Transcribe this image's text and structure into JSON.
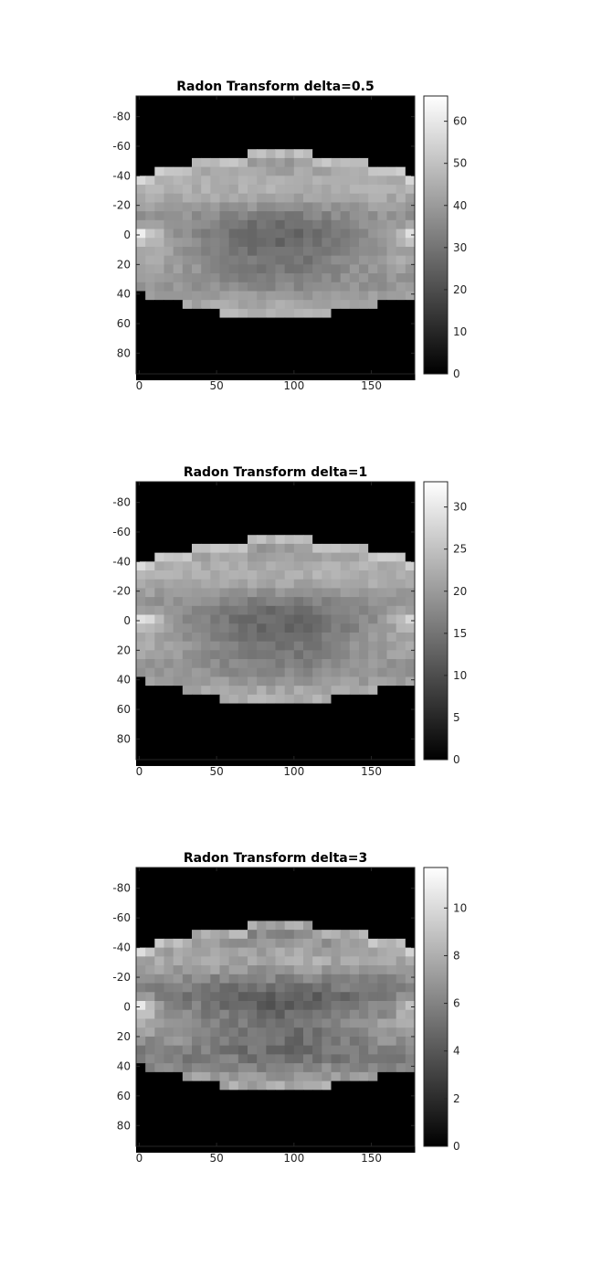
{
  "chart_data": [
    {
      "type": "heatmap",
      "title": "Radon Transform delta=0.5",
      "xlim": [
        -2,
        178
      ],
      "ylim": [
        94,
        -94
      ],
      "x_ticks": [
        0,
        50,
        100,
        150
      ],
      "x_tick_labels": [
        "0",
        "50",
        "100",
        "150"
      ],
      "y_ticks": [
        -80,
        -60,
        -40,
        -20,
        0,
        20,
        40,
        60,
        80
      ],
      "y_tick_labels": [
        "-80",
        "-60",
        "-40",
        "-20",
        "0",
        "20",
        "40",
        "60",
        "80"
      ],
      "colormap": "gray",
      "colorbar": {
        "limits": [
          0,
          66
        ],
        "ticks": [
          0,
          10,
          20,
          30,
          40,
          50,
          60
        ],
        "tick_labels": [
          "0",
          "10",
          "20",
          "30",
          "40",
          "50",
          "60"
        ]
      },
      "vmax": 66,
      "profile": {
        "body_mean": 42,
        "bright_edge": 64,
        "dark_core": 24,
        "noise": 3
      }
    },
    {
      "type": "heatmap",
      "title": "Radon Transform delta=1",
      "xlim": [
        -2,
        178
      ],
      "ylim": [
        94,
        -94
      ],
      "x_ticks": [
        0,
        50,
        100,
        150
      ],
      "x_tick_labels": [
        "0",
        "50",
        "100",
        "150"
      ],
      "y_ticks": [
        -80,
        -60,
        -40,
        -20,
        0,
        20,
        40,
        60,
        80
      ],
      "y_tick_labels": [
        "-80",
        "-60",
        "-40",
        "-20",
        "0",
        "20",
        "40",
        "60",
        "80"
      ],
      "colormap": "gray",
      "colorbar": {
        "limits": [
          0,
          33
        ],
        "ticks": [
          0,
          5,
          10,
          15,
          20,
          25,
          30
        ],
        "tick_labels": [
          "0",
          "5",
          "10",
          "15",
          "20",
          "25",
          "30"
        ]
      },
      "vmax": 33,
      "profile": {
        "body_mean": 21,
        "bright_edge": 32,
        "dark_core": 12,
        "noise": 1.5
      }
    },
    {
      "type": "heatmap",
      "title": "Radon Transform delta=3",
      "xlim": [
        -2,
        178
      ],
      "ylim": [
        94,
        -94
      ],
      "x_ticks": [
        0,
        50,
        100,
        150
      ],
      "x_tick_labels": [
        "0",
        "50",
        "100",
        "150"
      ],
      "y_ticks": [
        -80,
        -60,
        -40,
        -20,
        0,
        20,
        40,
        60,
        80
      ],
      "y_tick_labels": [
        "-80",
        "-60",
        "-40",
        "-20",
        "0",
        "20",
        "40",
        "60",
        "80"
      ],
      "colormap": "gray",
      "colorbar": {
        "limits": [
          0,
          11.7
        ],
        "ticks": [
          0,
          2,
          4,
          6,
          8,
          10
        ],
        "tick_labels": [
          "0",
          "2",
          "4",
          "6",
          "8",
          "10"
        ]
      },
      "vmax": 11.7,
      "profile": {
        "body_mean": 6.8,
        "bright_edge": 11,
        "dark_core": 4.0,
        "noise": 0.8
      }
    }
  ]
}
